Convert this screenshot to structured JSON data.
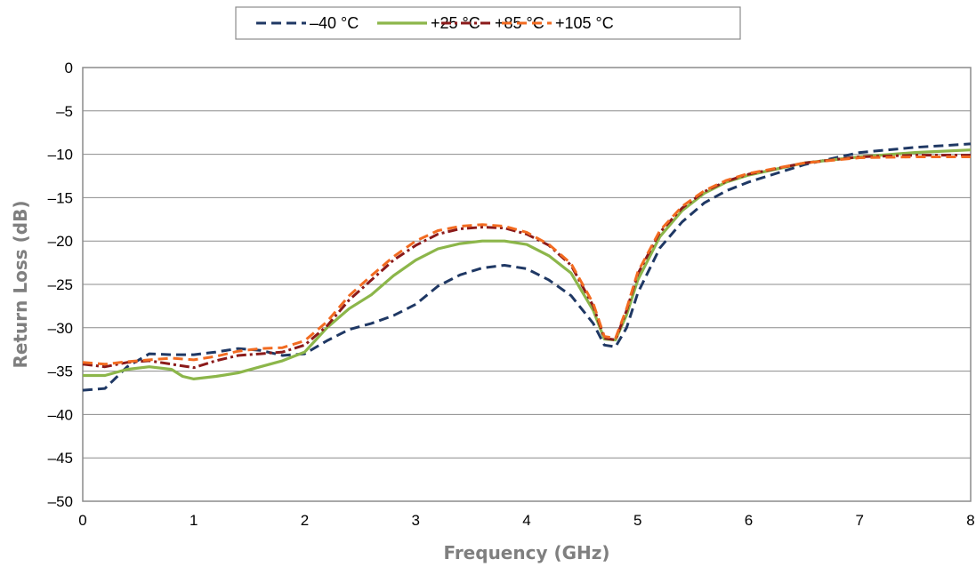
{
  "chart_data": {
    "type": "line",
    "title": "",
    "xlabel": "Frequency (GHz)",
    "ylabel": "Return Loss (dB)",
    "xlim": [
      0,
      8
    ],
    "ylim": [
      -50,
      0
    ],
    "x_ticks": [
      "0",
      "1",
      "2",
      "3",
      "4",
      "5",
      "6",
      "7",
      "8"
    ],
    "y_ticks": [
      "0",
      "–5",
      "–10",
      "–15",
      "–20",
      "–25",
      "–30",
      "–35",
      "–40",
      "–45",
      "–50"
    ],
    "grid": "horizontal",
    "legend_position": "top-center",
    "series": [
      {
        "name": "–40 °C",
        "color": "#1f3864",
        "dash": "dashed",
        "points": [
          [
            0,
            -37.2
          ],
          [
            0.2,
            -37
          ],
          [
            0.4,
            -34.5
          ],
          [
            0.6,
            -33
          ],
          [
            0.8,
            -33.1
          ],
          [
            1.0,
            -33.1
          ],
          [
            1.2,
            -32.8
          ],
          [
            1.4,
            -32.4
          ],
          [
            1.6,
            -32.6
          ],
          [
            1.8,
            -33.2
          ],
          [
            2.0,
            -33
          ],
          [
            2.2,
            -31.5
          ],
          [
            2.4,
            -30.2
          ],
          [
            2.6,
            -29.5
          ],
          [
            2.8,
            -28.6
          ],
          [
            3.0,
            -27.3
          ],
          [
            3.2,
            -25.2
          ],
          [
            3.4,
            -23.9
          ],
          [
            3.6,
            -23.1
          ],
          [
            3.8,
            -22.8
          ],
          [
            4.0,
            -23.2
          ],
          [
            4.2,
            -24.5
          ],
          [
            4.4,
            -26.3
          ],
          [
            4.6,
            -29.5
          ],
          [
            4.7,
            -32
          ],
          [
            4.8,
            -32.2
          ],
          [
            4.9,
            -30
          ],
          [
            5.0,
            -26
          ],
          [
            5.2,
            -20.8
          ],
          [
            5.4,
            -17.8
          ],
          [
            5.6,
            -15.6
          ],
          [
            5.8,
            -14.2
          ],
          [
            6.0,
            -13.2
          ],
          [
            6.5,
            -11.2
          ],
          [
            7.0,
            -9.8
          ],
          [
            7.5,
            -9.2
          ],
          [
            8.0,
            -8.8
          ]
        ]
      },
      {
        "name": "+25 °C",
        "color": "#8cb64a",
        "dash": "solid",
        "points": [
          [
            0,
            -35.5
          ],
          [
            0.2,
            -35.5
          ],
          [
            0.4,
            -34.8
          ],
          [
            0.6,
            -34.5
          ],
          [
            0.8,
            -34.8
          ],
          [
            0.9,
            -35.6
          ],
          [
            1.0,
            -35.9
          ],
          [
            1.2,
            -35.6
          ],
          [
            1.4,
            -35.2
          ],
          [
            1.6,
            -34.5
          ],
          [
            1.8,
            -33.8
          ],
          [
            2.0,
            -32.8
          ],
          [
            2.2,
            -30
          ],
          [
            2.4,
            -27.8
          ],
          [
            2.6,
            -26.2
          ],
          [
            2.8,
            -24
          ],
          [
            3.0,
            -22.2
          ],
          [
            3.2,
            -20.9
          ],
          [
            3.4,
            -20.3
          ],
          [
            3.6,
            -20
          ],
          [
            3.8,
            -20
          ],
          [
            4.0,
            -20.4
          ],
          [
            4.2,
            -21.7
          ],
          [
            4.4,
            -23.7
          ],
          [
            4.6,
            -28
          ],
          [
            4.7,
            -31.3
          ],
          [
            4.8,
            -31.4
          ],
          [
            4.9,
            -28.5
          ],
          [
            5.0,
            -24.5
          ],
          [
            5.2,
            -19.5
          ],
          [
            5.4,
            -16.5
          ],
          [
            5.6,
            -14.5
          ],
          [
            5.8,
            -13.2
          ],
          [
            6.0,
            -12.4
          ],
          [
            6.5,
            -11
          ],
          [
            7.0,
            -10.3
          ],
          [
            7.5,
            -9.8
          ],
          [
            8.0,
            -9.5
          ]
        ]
      },
      {
        "name": "+85 °C",
        "color": "#8b1a1a",
        "dash": "dashdot",
        "points": [
          [
            0,
            -34.2
          ],
          [
            0.2,
            -34.5
          ],
          [
            0.4,
            -34
          ],
          [
            0.6,
            -33.8
          ],
          [
            0.8,
            -34.2
          ],
          [
            1.0,
            -34.6
          ],
          [
            1.2,
            -33.8
          ],
          [
            1.4,
            -33.2
          ],
          [
            1.6,
            -33
          ],
          [
            1.8,
            -32.8
          ],
          [
            2.0,
            -32
          ],
          [
            2.2,
            -29.8
          ],
          [
            2.4,
            -26.8
          ],
          [
            2.6,
            -24.5
          ],
          [
            2.8,
            -22.2
          ],
          [
            3.0,
            -20.5
          ],
          [
            3.2,
            -19.2
          ],
          [
            3.4,
            -18.6
          ],
          [
            3.6,
            -18.4
          ],
          [
            3.8,
            -18.5
          ],
          [
            4.0,
            -19.2
          ],
          [
            4.2,
            -20.5
          ],
          [
            4.4,
            -22.8
          ],
          [
            4.6,
            -27.5
          ],
          [
            4.7,
            -31.2
          ],
          [
            4.8,
            -31.4
          ],
          [
            4.9,
            -28
          ],
          [
            5.0,
            -23.8
          ],
          [
            5.2,
            -19
          ],
          [
            5.4,
            -16.2
          ],
          [
            5.6,
            -14.3
          ],
          [
            5.8,
            -13.1
          ],
          [
            6.0,
            -12.3
          ],
          [
            6.5,
            -11
          ],
          [
            7.0,
            -10.3
          ],
          [
            7.5,
            -10.1
          ],
          [
            8.0,
            -10.1
          ]
        ]
      },
      {
        "name": "+105 °C",
        "color": "#f26b21",
        "dash": "dashed",
        "points": [
          [
            0,
            -34
          ],
          [
            0.2,
            -34.2
          ],
          [
            0.4,
            -33.9
          ],
          [
            0.6,
            -33.7
          ],
          [
            0.8,
            -33.5
          ],
          [
            1.0,
            -33.7
          ],
          [
            1.2,
            -33.3
          ],
          [
            1.4,
            -32.7
          ],
          [
            1.6,
            -32.4
          ],
          [
            1.8,
            -32.3
          ],
          [
            2.0,
            -31.5
          ],
          [
            2.2,
            -29.3
          ],
          [
            2.4,
            -26.3
          ],
          [
            2.6,
            -24
          ],
          [
            2.8,
            -21.8
          ],
          [
            3.0,
            -20
          ],
          [
            3.2,
            -18.8
          ],
          [
            3.4,
            -18.3
          ],
          [
            3.6,
            -18.1
          ],
          [
            3.8,
            -18.3
          ],
          [
            4.0,
            -19
          ],
          [
            4.2,
            -20.4
          ],
          [
            4.4,
            -22.6
          ],
          [
            4.6,
            -27.2
          ],
          [
            4.7,
            -31
          ],
          [
            4.8,
            -31.2
          ],
          [
            4.9,
            -27.8
          ],
          [
            5.0,
            -23.6
          ],
          [
            5.2,
            -18.8
          ],
          [
            5.4,
            -16
          ],
          [
            5.6,
            -14.2
          ],
          [
            5.8,
            -13
          ],
          [
            6.0,
            -12.2
          ],
          [
            6.5,
            -11
          ],
          [
            7.0,
            -10.4
          ],
          [
            7.5,
            -10.3
          ],
          [
            8.0,
            -10.3
          ]
        ]
      }
    ]
  }
}
